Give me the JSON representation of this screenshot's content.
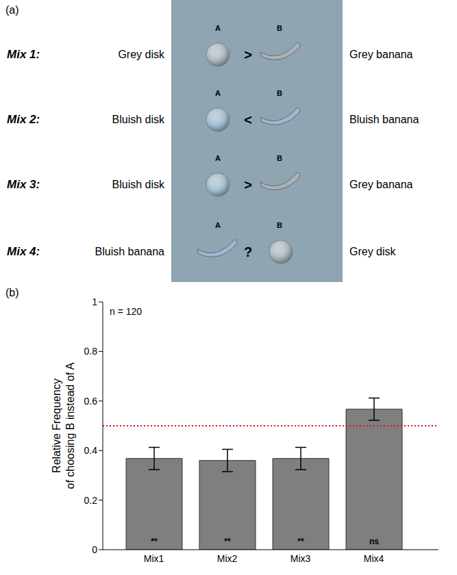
{
  "panel_a": {
    "label": "(a)",
    "background": "#8fa5b1",
    "rows": [
      {
        "name": "Mix 1:",
        "left_text": "Grey disk",
        "a_label": "A",
        "a": {
          "shape": "disk",
          "color": "#aab2b6"
        },
        "relation": ">",
        "b_label": "B",
        "b": {
          "shape": "banana",
          "color": "#aab2b6"
        },
        "right_text": "Grey banana"
      },
      {
        "name": "Mix 2:",
        "left_text": "Bluish disk",
        "a_label": "A",
        "a": {
          "shape": "disk",
          "color": "#9db8cf"
        },
        "relation": "<",
        "b_label": "B",
        "b": {
          "shape": "banana",
          "color": "#9db8cf"
        },
        "right_text": "Bluish banana"
      },
      {
        "name": "Mix 3:",
        "left_text": "Bluish disk",
        "a_label": "A",
        "a": {
          "shape": "disk",
          "color": "#9db8cf"
        },
        "relation": ">",
        "b_label": "B",
        "b": {
          "shape": "banana",
          "color": "#aab2b6"
        },
        "right_text": "Grey banana"
      },
      {
        "name": "Mix 4:",
        "left_text": "Bluish banana",
        "a_label": "A",
        "a": {
          "shape": "banana",
          "color": "#9db8cf"
        },
        "relation": "?",
        "b_label": "B",
        "b": {
          "shape": "disk",
          "color": "#aab2b6"
        },
        "right_text": "Grey disk"
      }
    ]
  },
  "chart_data": {
    "type": "bar",
    "panel_label": "(b)",
    "ylabel": [
      "Relative Frequency",
      "of choosing B instead of A"
    ],
    "annotation": "n = 120",
    "categories": [
      "Mix1",
      "Mix2",
      "Mix3",
      "Mix4"
    ],
    "values": [
      0.368,
      0.36,
      0.368,
      0.567
    ],
    "errors": [
      0.045,
      0.045,
      0.045,
      0.045
    ],
    "significance": [
      "**",
      "**",
      "**",
      "ns"
    ],
    "color": "#7f7f7f",
    "ylim": [
      0,
      1
    ],
    "yticks": [
      0,
      0.2,
      0.4,
      0.6,
      0.8,
      1
    ],
    "reference_line": {
      "value": 0.5,
      "color": "#e01010",
      "line_style": "dotted"
    }
  }
}
